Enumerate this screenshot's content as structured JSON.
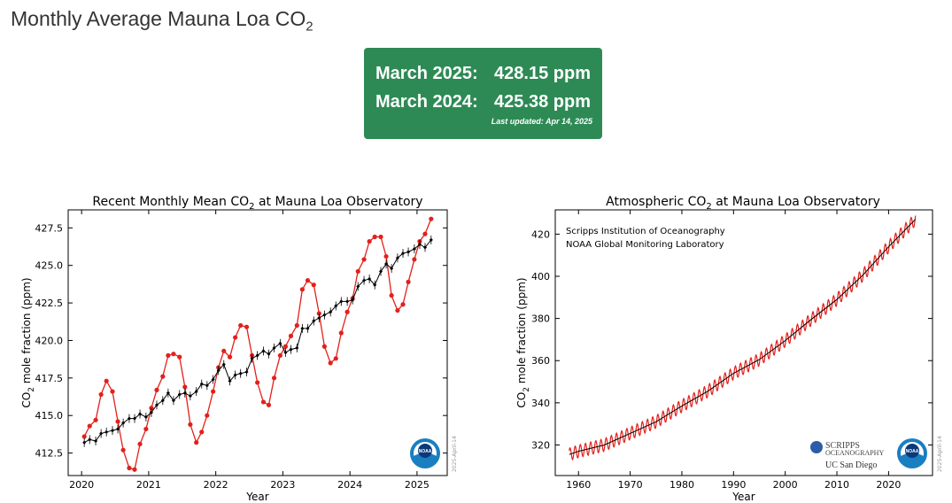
{
  "page": {
    "title_main": "Monthly Average Mauna Loa CO",
    "title_sub": "2"
  },
  "stats": {
    "row1_label": "March 2025:",
    "row1_value": "428.15 ppm",
    "row2_label": "March 2024:",
    "row2_value": "425.38 ppm",
    "updated": "Last updated: Apr 14, 2025"
  },
  "colors": {
    "box_green": "#2e8a55",
    "monthly_red": "#e3201b",
    "trend_black": "#000000",
    "noaa_blue": "#1a7fc1"
  },
  "chart_data": [
    {
      "type": "line",
      "title_pre": "Recent Monthly Mean CO",
      "title_sub": "2",
      "title_post": " at Mauna Loa Observatory",
      "ylabel_pre": "CO",
      "ylabel_sub": "2",
      "ylabel_post": " mole fraction (ppm)",
      "xlabel": "Year",
      "xlim": [
        2019.8,
        2025.45
      ],
      "ylim": [
        411.0,
        428.7
      ],
      "xticks": [
        2020,
        2021,
        2022,
        2023,
        2024,
        2025
      ],
      "yticks": [
        412.5,
        415.0,
        417.5,
        420.0,
        422.5,
        425.0,
        427.5
      ],
      "ytick_labels": [
        "412.5",
        "415.0",
        "417.5",
        "420.0",
        "422.5",
        "425.0",
        "427.5"
      ],
      "watermark": "2025-April-14",
      "logo": "NOAA",
      "series": [
        {
          "color": "#e3201b",
          "marker": "circle",
          "x": [
            2020.04,
            2020.12,
            2020.21,
            2020.29,
            2020.37,
            2020.46,
            2020.54,
            2020.62,
            2020.71,
            2020.79,
            2020.87,
            2020.96,
            2021.04,
            2021.12,
            2021.21,
            2021.29,
            2021.37,
            2021.46,
            2021.54,
            2021.62,
            2021.71,
            2021.79,
            2021.87,
            2021.96,
            2022.04,
            2022.12,
            2022.21,
            2022.29,
            2022.37,
            2022.46,
            2022.54,
            2022.62,
            2022.71,
            2022.79,
            2022.87,
            2022.96,
            2023.04,
            2023.12,
            2023.21,
            2023.29,
            2023.37,
            2023.46,
            2023.54,
            2023.62,
            2023.71,
            2023.79,
            2023.87,
            2023.96,
            2024.04,
            2024.12,
            2024.21,
            2024.29,
            2024.37,
            2024.46,
            2024.54,
            2024.62,
            2024.71,
            2024.79,
            2024.87,
            2024.96,
            2025.04,
            2025.12,
            2025.21
          ],
          "y": [
            413.6,
            414.3,
            414.7,
            416.4,
            417.3,
            416.6,
            414.6,
            412.7,
            411.5,
            411.4,
            413.1,
            414.1,
            415.5,
            416.7,
            417.6,
            419.0,
            419.1,
            418.9,
            416.9,
            414.4,
            413.2,
            413.9,
            415.0,
            416.6,
            418.2,
            419.3,
            418.9,
            420.2,
            421.0,
            420.9,
            419.0,
            417.2,
            415.9,
            415.7,
            417.5,
            419.0,
            419.6,
            420.3,
            421.0,
            423.4,
            424.0,
            423.7,
            421.8,
            419.6,
            418.5,
            418.8,
            420.5,
            421.9,
            422.8,
            424.6,
            425.4,
            426.6,
            426.9,
            426.9,
            425.6,
            423.0,
            422.0,
            422.4,
            423.9,
            425.4,
            426.6,
            427.1,
            428.1
          ]
        },
        {
          "color": "#000000",
          "marker": "diamond",
          "errorbars": true,
          "x": [
            2020.04,
            2020.12,
            2020.21,
            2020.29,
            2020.37,
            2020.46,
            2020.54,
            2020.62,
            2020.71,
            2020.79,
            2020.87,
            2020.96,
            2021.04,
            2021.12,
            2021.21,
            2021.29,
            2021.37,
            2021.46,
            2021.54,
            2021.62,
            2021.71,
            2021.79,
            2021.87,
            2021.96,
            2022.04,
            2022.12,
            2022.21,
            2022.29,
            2022.37,
            2022.46,
            2022.54,
            2022.62,
            2022.71,
            2022.79,
            2022.87,
            2022.96,
            2023.04,
            2023.12,
            2023.21,
            2023.29,
            2023.37,
            2023.46,
            2023.54,
            2023.62,
            2023.71,
            2023.79,
            2023.87,
            2023.96,
            2024.04,
            2024.12,
            2024.21,
            2024.29,
            2024.37,
            2024.46,
            2024.54,
            2024.62,
            2024.71,
            2024.79,
            2024.87,
            2024.96,
            2025.04,
            2025.12,
            2025.21
          ],
          "y": [
            413.2,
            413.4,
            413.3,
            413.8,
            413.9,
            414.0,
            414.1,
            414.5,
            414.8,
            414.8,
            415.1,
            414.9,
            415.2,
            415.7,
            416.0,
            416.5,
            416.0,
            416.4,
            416.5,
            416.3,
            416.6,
            417.1,
            417.0,
            417.4,
            418.0,
            418.4,
            417.3,
            417.7,
            417.8,
            417.9,
            418.8,
            419.0,
            419.3,
            419.1,
            419.5,
            419.8,
            419.2,
            419.4,
            419.5,
            420.8,
            420.8,
            421.3,
            421.5,
            421.7,
            421.9,
            422.3,
            422.6,
            422.6,
            422.7,
            423.6,
            424.0,
            424.1,
            423.7,
            424.6,
            425.1,
            424.8,
            425.5,
            425.8,
            425.9,
            426.1,
            426.4,
            426.2,
            426.7
          ]
        }
      ]
    },
    {
      "type": "line",
      "title_pre": "Atmospheric CO",
      "title_sub": "2",
      "title_post": " at Mauna Loa Observatory",
      "ylabel_pre": "CO",
      "ylabel_sub": "2",
      "ylabel_post": " mole fraction (ppm)",
      "xlabel": "Year",
      "xlim": [
        1955.5,
        2028.5
      ],
      "ylim": [
        305.5,
        431.5
      ],
      "xticks": [
        1960,
        1970,
        1980,
        1990,
        2000,
        2010,
        2020
      ],
      "yticks": [
        320,
        340,
        360,
        380,
        400,
        420
      ],
      "ytick_labels": [
        "320",
        "340",
        "360",
        "380",
        "400",
        "420"
      ],
      "annotation_line1": "Scripps Institution of Oceanography",
      "annotation_line2": "NOAA Global Monitoring Laboratory",
      "logo_scripps_line1": "SCRIPPS",
      "logo_scripps_line2": "OCEANOGRAPHY",
      "logo_ucsd": "UC San Diego",
      "logo": "NOAA",
      "watermark": "2025-April-14",
      "trend_x": [
        1958.2,
        1960,
        1965,
        1970,
        1975,
        1980,
        1985,
        1990,
        1995,
        2000,
        2005,
        2010,
        2015,
        2020,
        2025.2
      ],
      "trend_y": [
        315.5,
        317.0,
        320.0,
        325.5,
        331.0,
        338.5,
        345.5,
        354.0,
        360.5,
        369.5,
        379.5,
        389.0,
        400.5,
        414.0,
        427.0
      ],
      "seasonal_amplitude": 3.0,
      "series_colors": {
        "monthly": "#e3201b",
        "trend": "#000000"
      }
    }
  ]
}
